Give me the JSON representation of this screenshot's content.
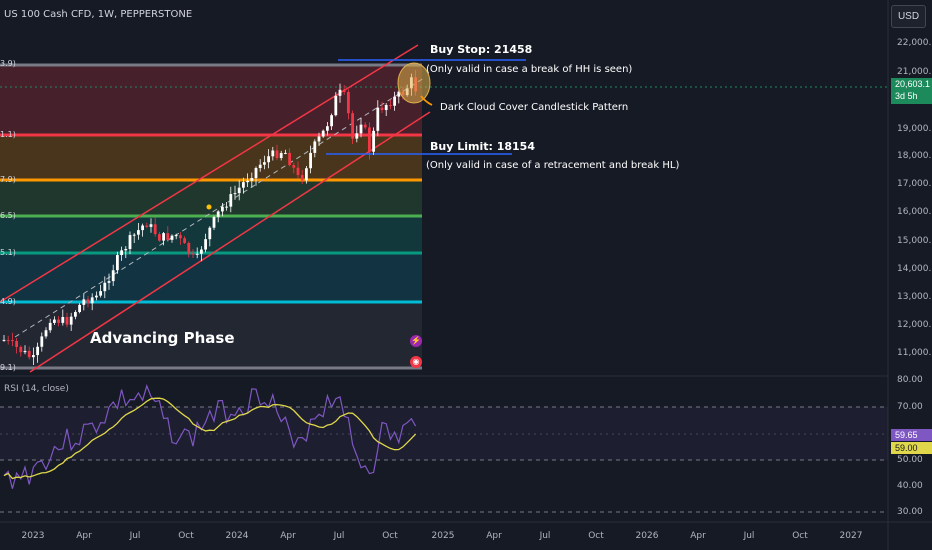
{
  "header": {
    "symbol_title": "US 100 Cash CFD, 1W, PEPPERSTONE",
    "currency_button": "USD"
  },
  "annotations": {
    "buy_stop": "Buy Stop: 21458",
    "buy_stop_note": "(Only valid in case a break of HH is seen)",
    "pattern": "Dark Cloud Cover Candlestick Pattern",
    "buy_limit": "Buy Limit: 18154",
    "buy_limit_note": "(Only valid in case of a retracement and break HL)",
    "phase": "Advancing Phase"
  },
  "price_axis": {
    "ticks": [
      "22,000.0",
      "21,000.0",
      "19,000.0",
      "18,000.0",
      "17,000.0",
      "16,000.0",
      "15,000.0",
      "14,000.0",
      "13,000.0",
      "12,000.0",
      "11,000.0"
    ],
    "current_price": "20,603.1",
    "countdown": "3d 5h"
  },
  "fib_labels": [
    "3.9)",
    "1.1)",
    "7.9)",
    "6.5)",
    "5.1)",
    "4.9)",
    "9.1)"
  ],
  "rsi": {
    "label": "RSI (14, close)",
    "ticks": [
      "80.00",
      "70.00",
      "50.00",
      "40.00",
      "30.00"
    ],
    "rsi_value": "59.65",
    "ma_value": "59.00"
  },
  "time_axis": {
    "ticks": [
      "2023",
      "Apr",
      "Jul",
      "Oct",
      "2024",
      "Apr",
      "Jul",
      "Oct",
      "2025",
      "Apr",
      "Jul",
      "Oct",
      "2026",
      "Apr",
      "Jul",
      "Oct",
      "2027"
    ]
  },
  "colors": {
    "background": "#161a25",
    "up_candle": "#ffffff",
    "down_candle": "#f23645",
    "channel": "#f23645",
    "fib_0": "#787b86",
    "fib_236": "#f23645",
    "fib_382": "#ff9800",
    "fib_5": "#4caf50",
    "fib_618": "#089981",
    "fib_786": "#00bcd4",
    "rsi_line": "#7e57c2",
    "rsi_ma": "#e0d84a",
    "price_label": "#1d8a5b"
  }
}
